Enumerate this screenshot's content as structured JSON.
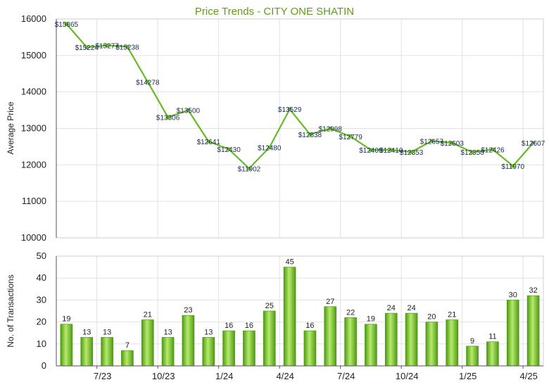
{
  "chart_data": [
    {
      "type": "line",
      "title": "Price Trends - CITY ONE SHATIN",
      "ylabel": "Average Price",
      "ylim": [
        10000,
        16000
      ],
      "yticks": [
        10000,
        11000,
        12000,
        13000,
        14000,
        15000,
        16000
      ],
      "grid": true,
      "color": "#66bb22",
      "series": [
        {
          "values": [
            15865,
            15224,
            15277,
            15238,
            14278,
            13306,
            13500,
            12641,
            12430,
            11902,
            12480,
            13529,
            12838,
            12998,
            12779,
            12409,
            12410,
            12353,
            12657,
            12603,
            12350,
            12426,
            11970,
            12607
          ],
          "labels": [
            "$15865",
            "$15224",
            "$15277",
            "$15238",
            "$14278",
            "$13306",
            "$13500",
            "$12641",
            "$12430",
            "$11902",
            "$12480",
            "$13529",
            "$12838",
            "$12998",
            "$12779",
            "$12409",
            "$12410",
            "$12353",
            "$12657",
            "$12603",
            "$12350",
            "$12426",
            "$11970",
            "$12607"
          ]
        }
      ]
    },
    {
      "type": "bar",
      "ylabel": "No. of Transactions",
      "ylim": [
        0,
        50
      ],
      "yticks": [
        0,
        10,
        20,
        30,
        40,
        50
      ],
      "grid": true,
      "color": "#66bb22",
      "x_tick_labels": [
        {
          "index": 2,
          "label": "7/23"
        },
        {
          "index": 5,
          "label": "10/23"
        },
        {
          "index": 8,
          "label": "1/24"
        },
        {
          "index": 11,
          "label": "4/24"
        },
        {
          "index": 14,
          "label": "7/24"
        },
        {
          "index": 17,
          "label": "10/24"
        },
        {
          "index": 20,
          "label": "1/25"
        },
        {
          "index": 23,
          "label": "4/25"
        }
      ],
      "series": [
        {
          "values": [
            19,
            13,
            13,
            7,
            21,
            13,
            23,
            13,
            16,
            16,
            25,
            45,
            16,
            27,
            22,
            19,
            24,
            24,
            20,
            21,
            9,
            11,
            30,
            32
          ]
        }
      ]
    }
  ]
}
